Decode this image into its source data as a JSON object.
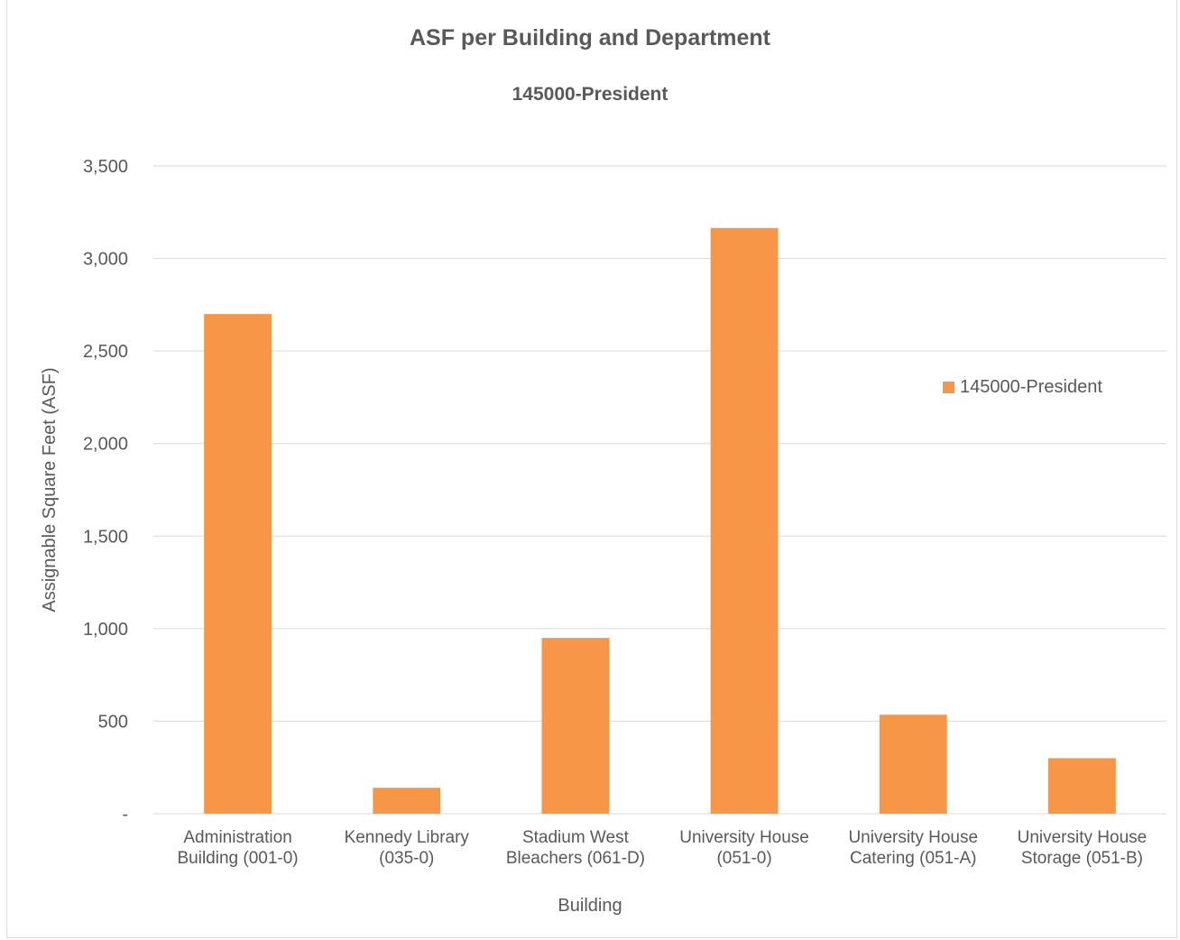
{
  "chart_data": {
    "type": "bar",
    "title": "ASF per Building and Department",
    "subtitle": "145000-President",
    "xlabel": "Building",
    "ylabel": "Assignable Square Feet (ASF)",
    "categories": [
      [
        "Administration",
        "Building (001-0)"
      ],
      [
        "Kennedy Library",
        "(035-0)"
      ],
      [
        "Stadium West",
        "Bleachers (061-D)"
      ],
      [
        "University House",
        "(051-0)"
      ],
      [
        "University House",
        "Catering (051-A)"
      ],
      [
        "University House",
        "Storage (051-B)"
      ]
    ],
    "series": [
      {
        "name": "145000-President",
        "color": "#F79646",
        "values": [
          2700,
          140,
          950,
          3165,
          535,
          300
        ]
      }
    ],
    "ylim": [
      0,
      3500
    ],
    "yticks": [
      0,
      500,
      1000,
      1500,
      2000,
      2500,
      3000,
      3500
    ],
    "ytick_labels": [
      "-",
      "500",
      "1,000",
      "1,500",
      "2,000",
      "2,500",
      "3,000",
      "3,500"
    ],
    "grid": true,
    "legend_position": "right"
  }
}
